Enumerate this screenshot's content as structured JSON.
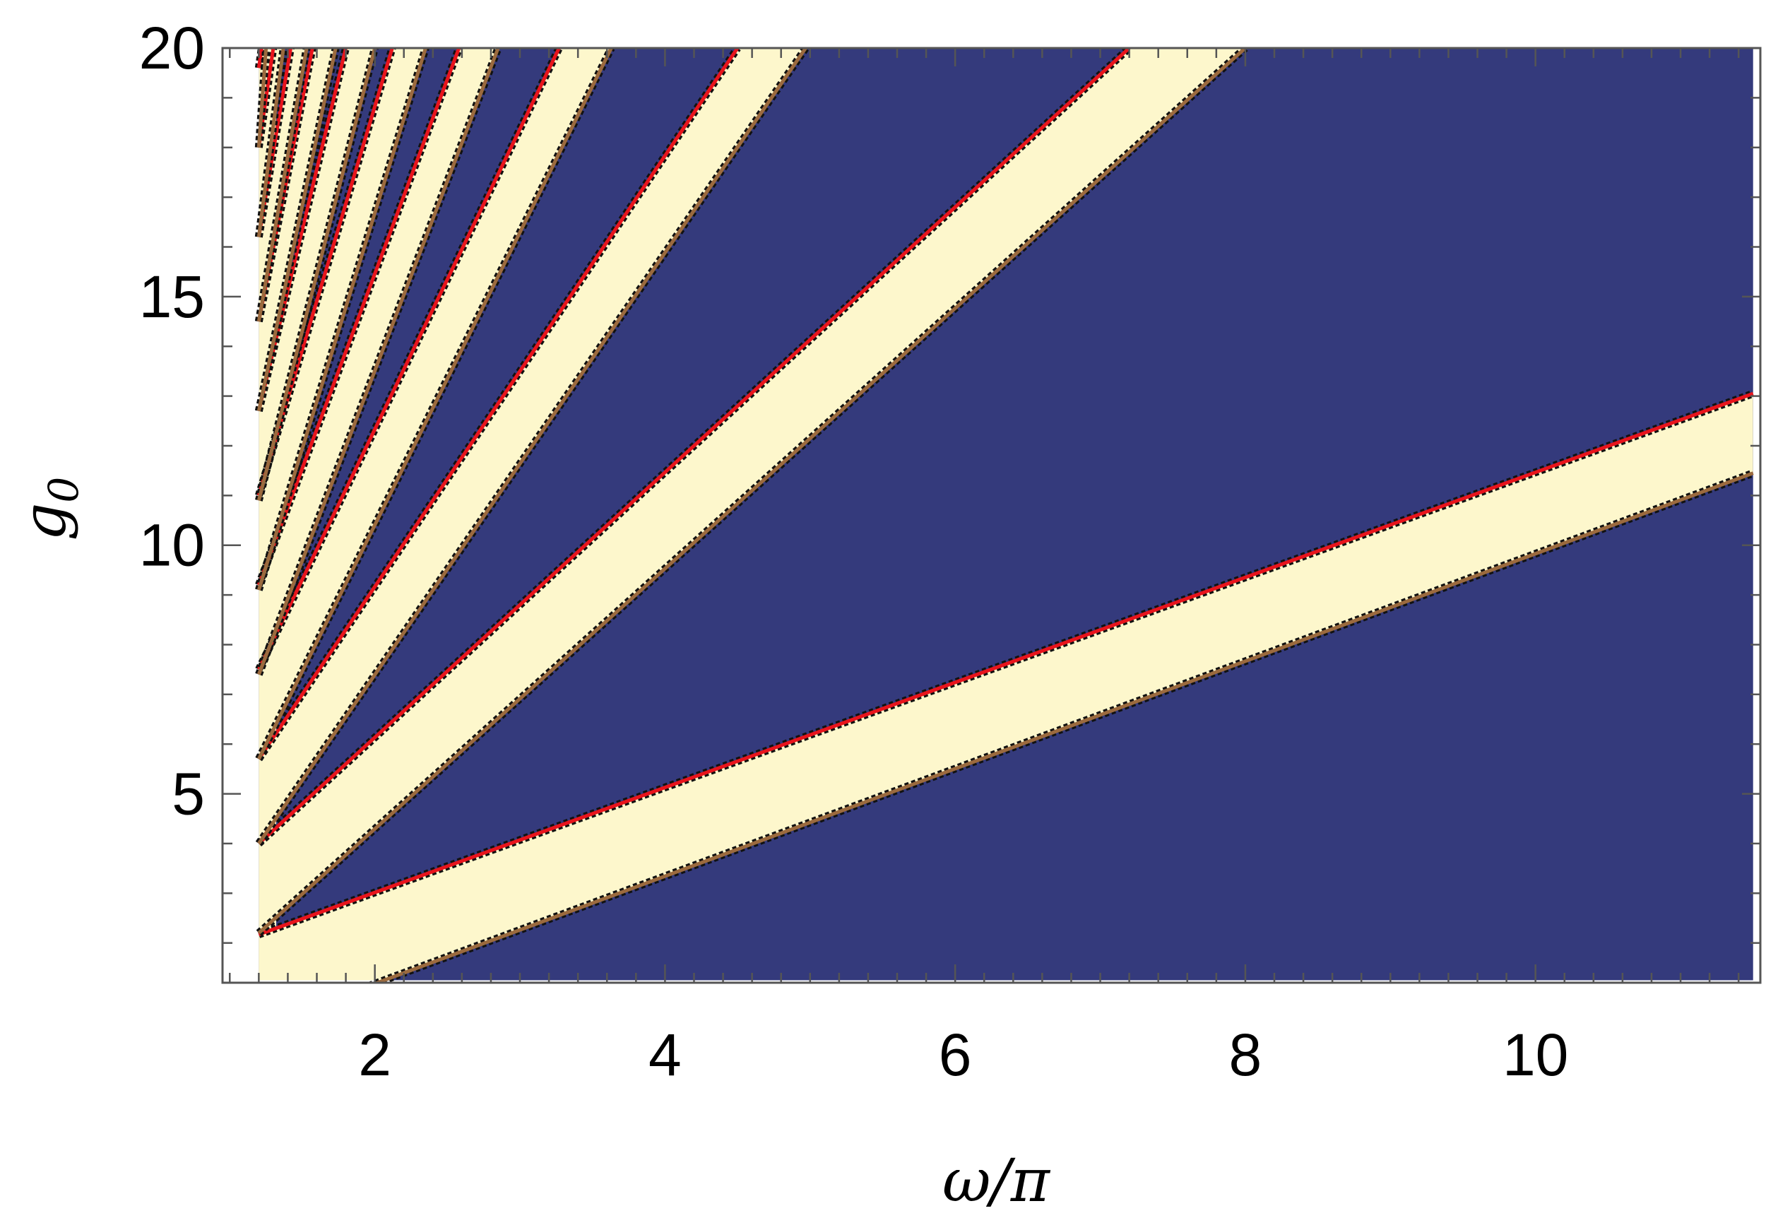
{
  "chart_data": {
    "type": "heatmap",
    "xlabel": "ω/π",
    "ylabel": "g",
    "ylabel_subscript": "0",
    "xlim": [
      0.95,
      11.55
    ],
    "ylim": [
      1.2,
      20.0
    ],
    "xticks": [
      2,
      4,
      6,
      8,
      10
    ],
    "yticks": [
      5,
      10,
      15,
      20
    ],
    "x_minor_step": 0.2,
    "y_minor_step": 1,
    "region": {
      "x": [
        1.2,
        11.5
      ],
      "y": [
        1.25,
        20.0
      ]
    },
    "colors": {
      "background": "#343a7c",
      "band": "#fdf7cc",
      "upper_boundary": "#e8141c",
      "lower_boundary": "#9b6a3e",
      "pixel_edge": "#111111"
    },
    "bands": [
      {
        "n": 1,
        "upper": [
          [
            1.2,
            2.17
          ],
          [
            11.5,
            13.05
          ]
        ],
        "lower": [
          [
            1.0,
            0.1
          ],
          [
            11.5,
            11.45
          ]
        ]
      },
      {
        "n": 2,
        "upper": [
          [
            1.2,
            4.0
          ],
          [
            7.2,
            20.0
          ]
        ],
        "lower": [
          [
            1.2,
            2.2
          ],
          [
            8.0,
            20.0
          ]
        ]
      },
      {
        "n": 3,
        "upper": [
          [
            1.2,
            5.7
          ],
          [
            4.5,
            20.0
          ]
        ],
        "lower": [
          [
            1.2,
            4.0
          ],
          [
            4.97,
            20.0
          ]
        ]
      },
      {
        "n": 4,
        "upper": [
          [
            1.2,
            7.5
          ],
          [
            3.27,
            20.0
          ]
        ],
        "lower": [
          [
            1.2,
            5.7
          ],
          [
            3.63,
            20.0
          ]
        ]
      },
      {
        "n": 5,
        "upper": [
          [
            1.2,
            9.2
          ],
          [
            2.58,
            20.0
          ]
        ],
        "lower": [
          [
            1.2,
            7.4
          ],
          [
            2.85,
            20.0
          ]
        ]
      },
      {
        "n": 6,
        "upper": [
          [
            1.2,
            11.0
          ],
          [
            2.12,
            20.0
          ]
        ],
        "lower": [
          [
            1.2,
            9.1
          ],
          [
            2.35,
            20.0
          ]
        ]
      },
      {
        "n": 7,
        "upper": [
          [
            1.2,
            12.7
          ],
          [
            1.8,
            20.0
          ]
        ],
        "lower": [
          [
            1.2,
            10.9
          ],
          [
            2.0,
            20.0
          ]
        ]
      },
      {
        "n": 8,
        "upper": [
          [
            1.2,
            14.5
          ],
          [
            1.57,
            20.0
          ]
        ],
        "lower": [
          [
            1.2,
            12.7
          ],
          [
            1.73,
            20.0
          ]
        ]
      },
      {
        "n": 9,
        "upper": [
          [
            1.2,
            16.2
          ],
          [
            1.42,
            20.0
          ]
        ],
        "lower": [
          [
            1.2,
            14.5
          ],
          [
            1.53,
            20.0
          ]
        ]
      },
      {
        "n": 10,
        "upper": [
          [
            1.2,
            18.0
          ],
          [
            1.3,
            20.0
          ]
        ],
        "lower": [
          [
            1.2,
            16.2
          ],
          [
            1.37,
            20.0
          ]
        ]
      },
      {
        "n": 11,
        "upper": [
          [
            1.2,
            19.6
          ],
          [
            1.22,
            20.0
          ]
        ],
        "lower": [
          [
            1.2,
            18.0
          ],
          [
            1.25,
            20.0
          ]
        ]
      }
    ],
    "grid": false,
    "legend": "none"
  }
}
